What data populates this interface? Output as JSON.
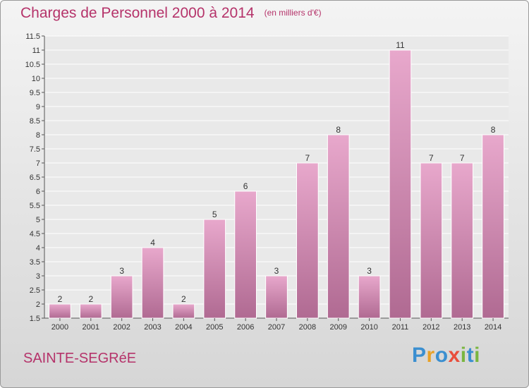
{
  "header": {
    "title": "Charges de Personnel 2000 à 2014",
    "unit": "(en milliers d'€)"
  },
  "footer": {
    "commune": "SAINTE-SEGRéE",
    "brand_letters": [
      {
        "ch": "P",
        "color": "#3b8fd0"
      },
      {
        "ch": "r",
        "color": "#e9a125"
      },
      {
        "ch": "o",
        "color": "#3b8fd0"
      },
      {
        "ch": "x",
        "color": "#e94e3c"
      },
      {
        "ch": "i",
        "color": "#7ab640"
      },
      {
        "ch": "t",
        "color": "#3b8fd0"
      },
      {
        "ch": "i",
        "color": "#7ab640"
      }
    ]
  },
  "colors": {
    "title": "#b5336a",
    "bar_light": "#e8a8cc",
    "bar_dark": "#b06a92",
    "bar_stroke": "#ffffff"
  },
  "chart_data": {
    "type": "bar",
    "title": "Charges de Personnel 2000 à 2014",
    "subtitle": "(en milliers d'€)",
    "categories": [
      "2000",
      "2001",
      "2002",
      "2003",
      "2004",
      "2005",
      "2006",
      "2007",
      "2008",
      "2009",
      "2010",
      "2011",
      "2012",
      "2013",
      "2014"
    ],
    "values": [
      2,
      2,
      3,
      4,
      2,
      5,
      6,
      3,
      7,
      8,
      3,
      11,
      7,
      7,
      8
    ],
    "data_labels": [
      "2",
      "2",
      "3",
      "4",
      "2",
      "5",
      "6",
      "3",
      "7",
      "8",
      "3",
      "11",
      "7",
      "7",
      "8"
    ],
    "ylim": [
      1.5,
      11.5
    ],
    "yticks": [
      "1.5",
      "2",
      "2.5",
      "3",
      "3.5",
      "4",
      "4.5",
      "5",
      "5.5",
      "6",
      "6.5",
      "7",
      "7.5",
      "8",
      "8.5",
      "9",
      "9.5",
      "10",
      "10.5",
      "11",
      "11.5"
    ],
    "grid": true,
    "legend": "none"
  }
}
